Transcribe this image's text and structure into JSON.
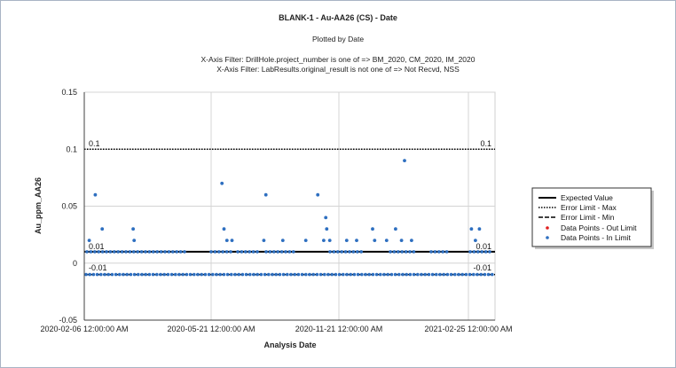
{
  "chart_data": {
    "type": "scatter",
    "title": "BLANK-1 - Au-AA26 (CS) - Date",
    "subtitle": "Plotted by Date",
    "filters": [
      "X-Axis Filter: DrillHole.project_number is one of => BM_2020, CM_2020, IM_2020",
      "X-Axis Filter: LabResults.original_result is not one of => Not Recvd, NSS"
    ],
    "xlabel": "Analysis Date",
    "ylabel": "Au_ppm_AA26",
    "x_tick_labels": [
      "2020-02-06 12:00:00 AM",
      "2020-05-21 12:00:00 AM",
      "2020-11-21 12:00:00 AM",
      "2021-02-25 12:00:00 AM"
    ],
    "y_tick_labels": [
      "0.15",
      "0.1",
      "0.05",
      "0",
      "-0.05"
    ],
    "ylim": [
      -0.05,
      0.15
    ],
    "grid": true,
    "legend_position": "right",
    "legend": [
      {
        "label": "Expected Value",
        "style": "solid-line"
      },
      {
        "label": "Error Limit - Max",
        "style": "dotted-line"
      },
      {
        "label": "Error Limit - Min",
        "style": "dashed-line"
      },
      {
        "label": "Data Points - Out Limit",
        "style": "red-dot"
      },
      {
        "label": "Data Points - In Limit",
        "style": "blue-dot"
      }
    ],
    "expected_value": 0.01,
    "error_limit_max": 0.1,
    "error_limit_min": -0.01,
    "limit_labels": {
      "max_left": "0.1",
      "max_right": "0.1",
      "exp_left": "0.01",
      "exp_right": "0.01",
      "min_left": "-0.01",
      "min_right": "-0.01"
    },
    "colors": {
      "in_limit": "#2e6fc0",
      "out_limit": "#e02020",
      "grid": "#d4d4d4",
      "axis": "#404040"
    },
    "series": [
      {
        "name": "Data Points - In Limit",
        "points": [
          [
            "2020-02-11",
            0.02
          ],
          [
            "2020-02-17",
            0.06
          ],
          [
            "2020-02-24",
            0.03
          ],
          [
            "2020-03-26",
            0.03
          ],
          [
            "2020-03-27",
            0.02
          ],
          [
            "2020-06-23",
            0.07
          ],
          [
            "2020-06-25",
            0.03
          ],
          [
            "2020-06-28",
            0.02
          ],
          [
            "2020-07-03",
            0.02
          ],
          [
            "2020-08-04",
            0.02
          ],
          [
            "2020-08-06",
            0.06
          ],
          [
            "2020-08-23",
            0.02
          ],
          [
            "2020-09-15",
            0.02
          ],
          [
            "2020-09-27",
            0.06
          ],
          [
            "2020-10-03",
            0.02
          ],
          [
            "2020-10-05",
            0.04
          ],
          [
            "2020-10-06",
            0.03
          ],
          [
            "2020-10-09",
            0.02
          ],
          [
            "2020-10-26",
            0.02
          ],
          [
            "2020-11-05",
            0.02
          ],
          [
            "2020-11-21",
            0.03
          ],
          [
            "2020-11-23",
            0.02
          ],
          [
            "2020-12-05",
            0.02
          ],
          [
            "2020-12-14",
            0.03
          ],
          [
            "2020-12-20",
            0.02
          ],
          [
            "2020-12-23",
            0.09
          ],
          [
            "2020-12-30",
            0.02
          ],
          [
            "2021-02-28",
            0.03
          ],
          [
            "2021-03-08",
            0.03
          ],
          [
            "2021-03-04",
            0.02
          ]
        ]
      }
    ]
  }
}
